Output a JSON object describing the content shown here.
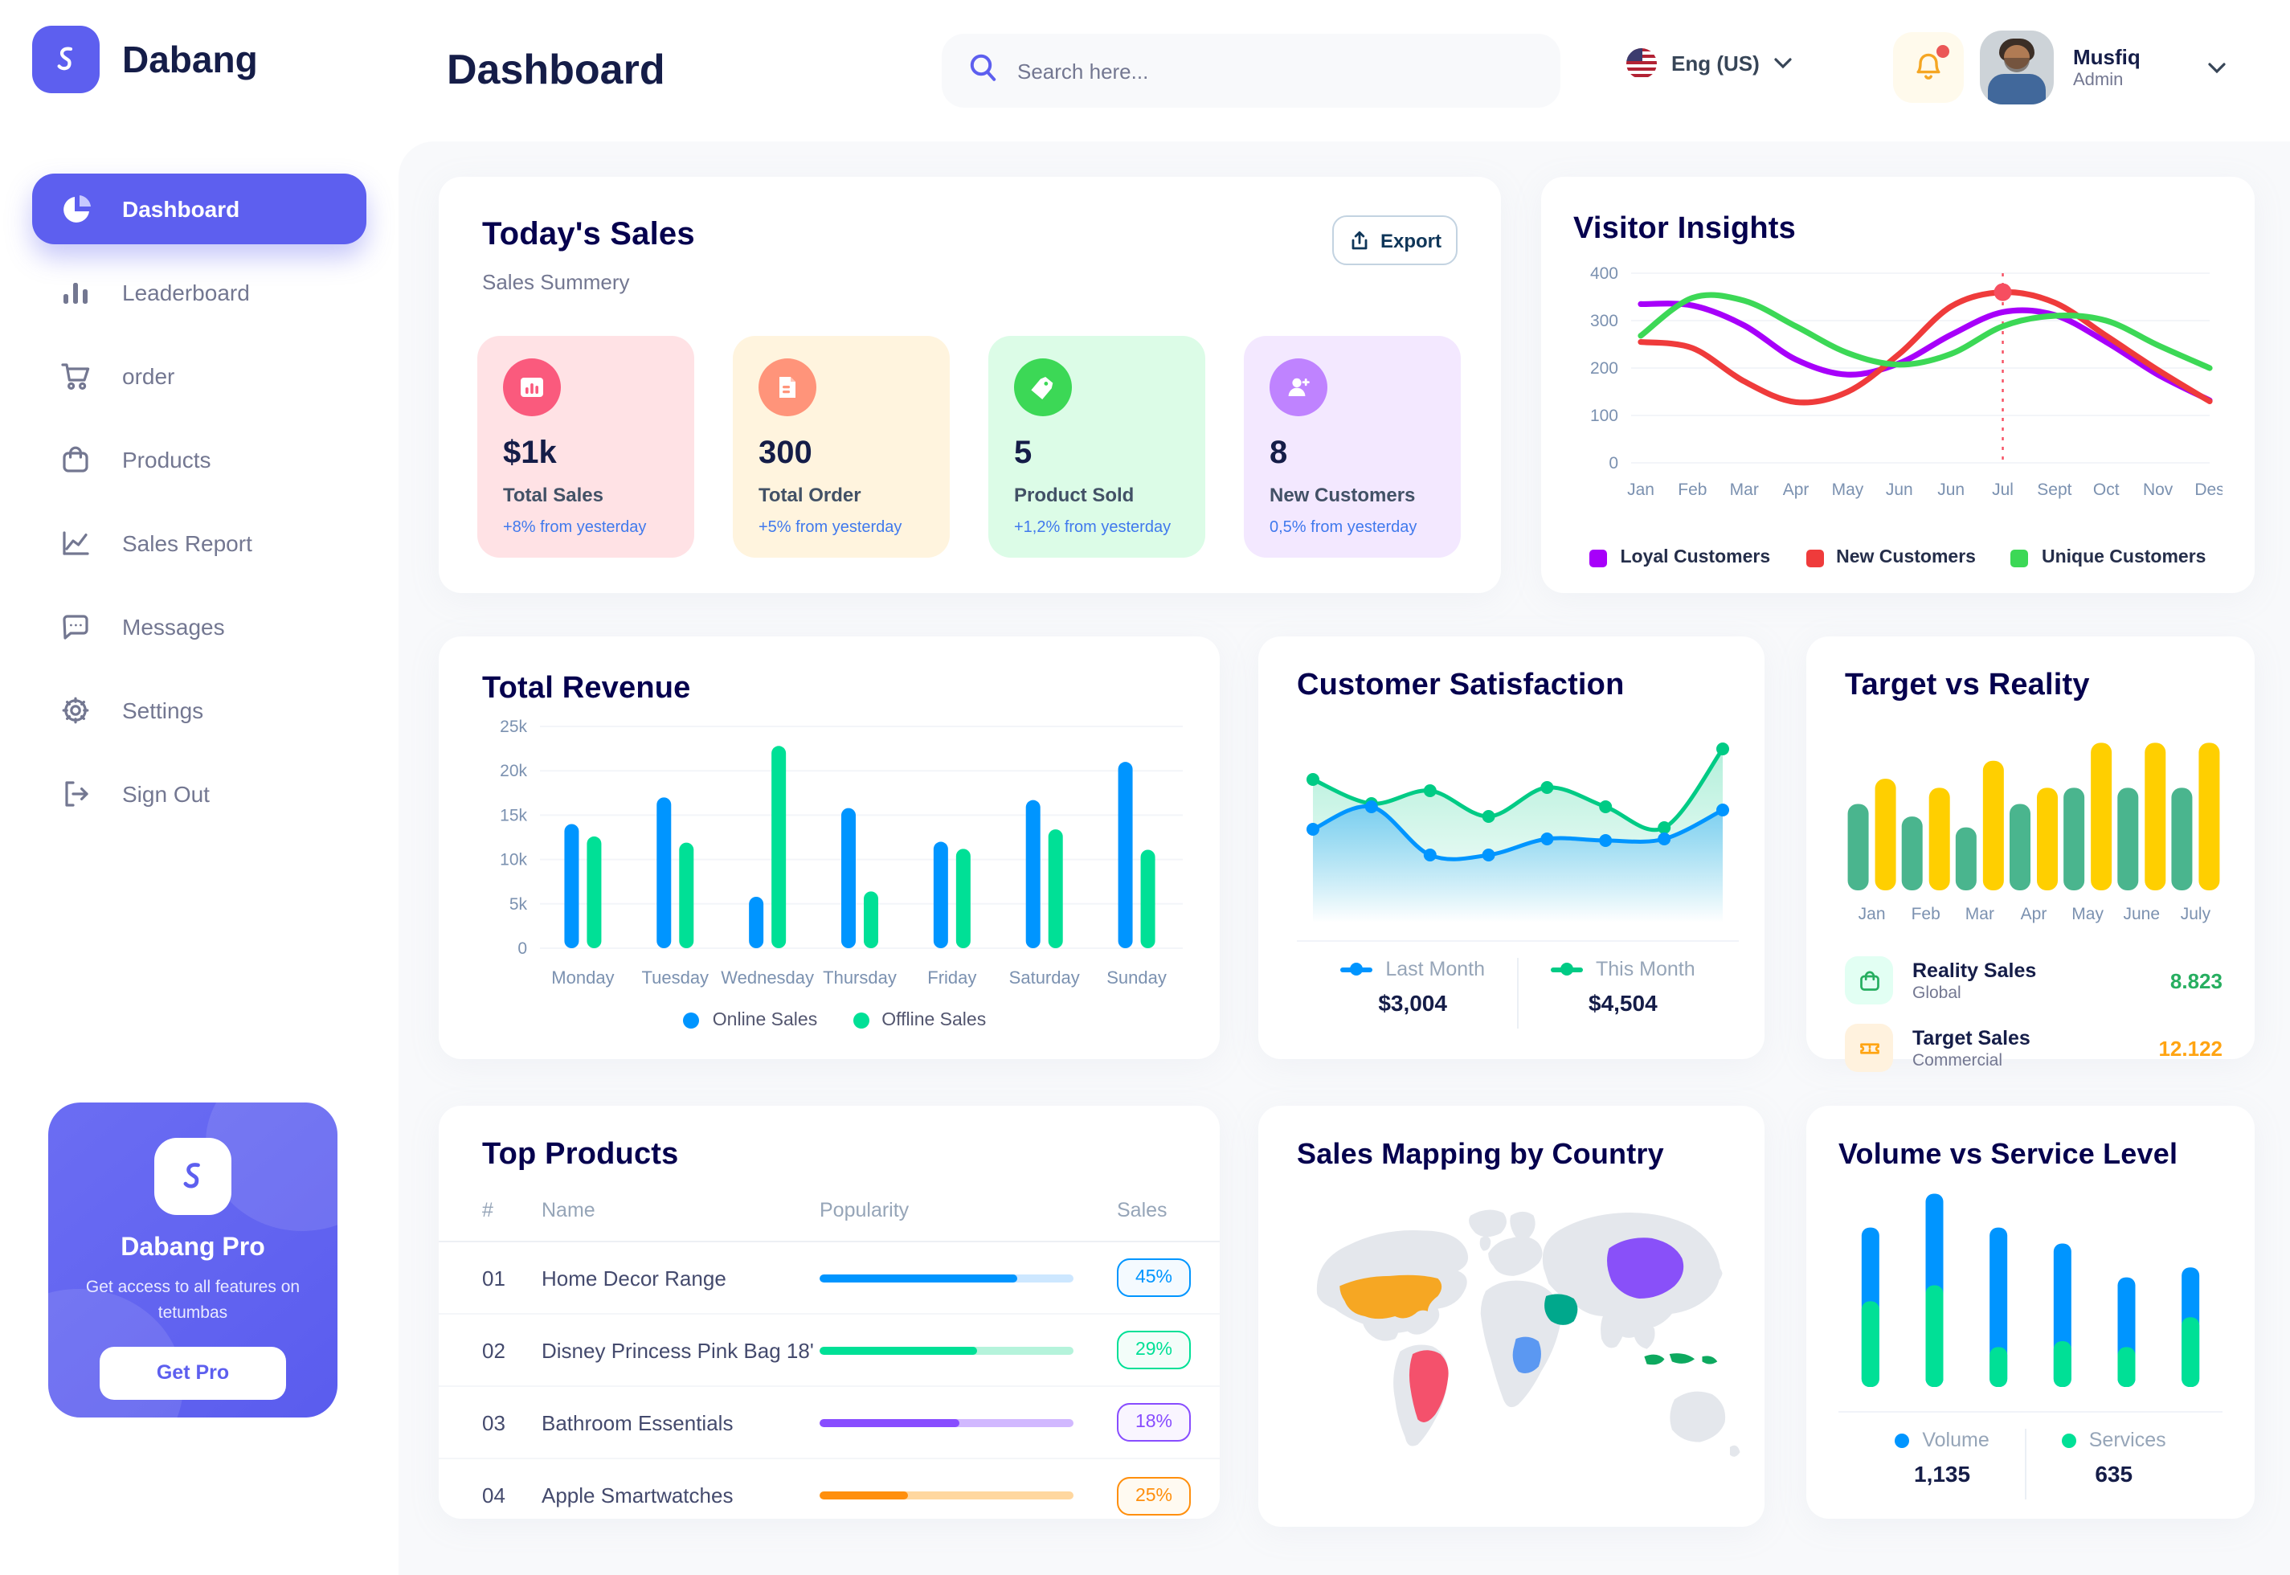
{
  "app": {
    "brand": "Dabang"
  },
  "header": {
    "title": "Dashboard",
    "search": {
      "placeholder": "Search here..."
    },
    "language": {
      "label": "Eng (US)"
    },
    "user": {
      "name": "Musfiq",
      "role": "Admin"
    }
  },
  "sidebar": {
    "items": [
      {
        "label": "Dashboard",
        "icon": "pie-chart-icon",
        "active": true
      },
      {
        "label": "Leaderboard",
        "icon": "bar-chart-icon",
        "active": false
      },
      {
        "label": "order",
        "icon": "cart-icon",
        "active": false
      },
      {
        "label": "Products",
        "icon": "bag-icon",
        "active": false
      },
      {
        "label": "Sales Report",
        "icon": "line-chart-icon",
        "active": false
      },
      {
        "label": "Messages",
        "icon": "message-icon",
        "active": false
      },
      {
        "label": "Settings",
        "icon": "gear-icon",
        "active": false
      },
      {
        "label": "Sign Out",
        "icon": "sign-out-icon",
        "active": false
      }
    ],
    "pro_card": {
      "title": "Dabang Pro",
      "subtitle": "Get access to all features on tetumbas",
      "cta": "Get Pro"
    }
  },
  "todays_sales": {
    "title": "Today's Sales",
    "subtitle": "Sales Summery",
    "export_label": "Export",
    "stats": [
      {
        "value": "$1k",
        "label": "Total Sales",
        "delta": "+8% from yesterday",
        "card_bg": "#FFE2E5",
        "icon_bg": "#FA5A7D",
        "icon": "chart-card-icon"
      },
      {
        "value": "300",
        "label": "Total Order",
        "delta": "+5% from yesterday",
        "card_bg": "#FFF4DE",
        "icon_bg": "#FF947A",
        "icon": "document-icon"
      },
      {
        "value": "5",
        "label": "Product Sold",
        "delta": "+1,2% from yesterday",
        "card_bg": "#DCFCE7",
        "icon_bg": "#3CD856",
        "icon": "tag-icon"
      },
      {
        "value": "8",
        "label": "New Customers",
        "delta": "0,5% from yesterday",
        "card_bg": "#F3E8FF",
        "icon_bg": "#BF83FF",
        "icon": "new-user-icon"
      }
    ]
  },
  "chart_data": {
    "visitor_insights": {
      "type": "line",
      "title": "Visitor Insights",
      "x_labels": [
        "Jan",
        "Feb",
        "Mar",
        "Apr",
        "May",
        "Jun",
        "Jun",
        "Jul",
        "Sept",
        "Oct",
        "Nov",
        "Des"
      ],
      "y_tick_values": [
        0,
        100,
        200,
        300,
        400
      ],
      "ylim": [
        0,
        400
      ],
      "grid": true,
      "legend_position": "bottom",
      "series": [
        {
          "name": "Loyal Customers",
          "color": "#A700FA",
          "values": [
            335,
            332,
            290,
            218,
            186,
            210,
            270,
            318,
            312,
            255,
            186,
            132
          ]
        },
        {
          "name": "New Customers",
          "color": "#EF3B3B",
          "values": [
            255,
            242,
            172,
            128,
            150,
            230,
            330,
            360,
            338,
            268,
            196,
            130
          ]
        },
        {
          "name": "Unique Customers",
          "color": "#3CD856",
          "values": [
            268,
            348,
            342,
            288,
            232,
            207,
            230,
            288,
            310,
            300,
            248,
            200
          ]
        }
      ],
      "marker": {
        "series_index": 1,
        "x_index": 7,
        "color": "#F64E60"
      }
    },
    "total_revenue": {
      "type": "bar",
      "title": "Total Revenue",
      "categories": [
        "Monday",
        "Tuesday",
        "Wednesday",
        "Thursday",
        "Friday",
        "Saturday",
        "Sunday"
      ],
      "y_tick_values": [
        0,
        5,
        10,
        15,
        20,
        25
      ],
      "y_tick_labels": [
        "0",
        "5k",
        "10k",
        "15k",
        "20k",
        "25k"
      ],
      "ylim": [
        0,
        25
      ],
      "grid": true,
      "legend_position": "bottom",
      "series": [
        {
          "name": "Online Sales",
          "color": "#0095FF",
          "values": [
            14,
            17,
            5.8,
            15.8,
            12,
            16.7,
            21
          ]
        },
        {
          "name": "Offline Sales",
          "color": "#00E096",
          "values": [
            12.6,
            11.9,
            22.8,
            6.4,
            11.2,
            13.4,
            11.1
          ]
        }
      ]
    },
    "customer_satisfaction": {
      "type": "area",
      "title": "Customer Satisfaction",
      "ylim": [
        0,
        100
      ],
      "legend_position": "bottom",
      "series": [
        {
          "name": "Last Month",
          "color": "#0095FF",
          "total": "$3,004",
          "values": [
            42,
            56,
            26,
            26,
            36,
            35,
            36,
            54
          ]
        },
        {
          "name": "This Month",
          "color": "#00CB85",
          "total": "$4,504",
          "values": [
            73,
            58,
            66,
            50,
            68,
            56,
            43,
            92
          ]
        }
      ]
    },
    "target_vs_reality": {
      "type": "bar",
      "title": "Target vs Reality",
      "categories": [
        "Jan",
        "Feb",
        "Mar",
        "Apr",
        "May",
        "June",
        "July"
      ],
      "ylim": [
        0,
        100
      ],
      "series": [
        {
          "name": "Reality Sales",
          "color": "#4AB58E",
          "values": [
            48,
            41,
            35,
            48,
            57,
            57,
            57
          ]
        },
        {
          "name": "Target Sales",
          "color": "#FFCF00",
          "values": [
            62,
            57,
            72,
            57,
            82,
            82,
            82
          ]
        }
      ],
      "summary": [
        {
          "label": "Reality Sales",
          "sublabel": "Global",
          "value": "8.823",
          "value_color": "#27AE60",
          "icon": "bag-icon",
          "icon_bg": "#E2FFF3"
        },
        {
          "label": "Target Sales",
          "sublabel": "Commercial",
          "value": "12.122",
          "value_color": "#FFA412",
          "icon": "ticket-icon",
          "icon_bg": "#FFF2DE"
        }
      ]
    },
    "volume_service": {
      "type": "stacked-bar",
      "title": "Volume vs Service Level",
      "legend_position": "bottom",
      "series": [
        {
          "name": "Volume",
          "color": "#0095FF",
          "total": "1,135",
          "values": [
            37,
            46,
            60,
            49,
            35,
            25
          ]
        },
        {
          "name": "Services",
          "color": "#00E096",
          "total": "635",
          "values": [
            43,
            51,
            20,
            23,
            20,
            35
          ]
        }
      ]
    }
  },
  "top_products": {
    "title": "Top Products",
    "columns": [
      "#",
      "Name",
      "Popularity",
      "Sales"
    ],
    "rows": [
      {
        "num": "01",
        "name": "Home Decor Range",
        "popularity": 78,
        "sales": "45%",
        "color": "#0095FF",
        "track": "#CDE7FF",
        "badge_bg": "#F4FAFF"
      },
      {
        "num": "02",
        "name": "Disney Princess Pink Bag 18'",
        "popularity": 62,
        "sales": "29%",
        "color": "#00E096",
        "track": "#B5F3DB",
        "badge_bg": "#F3FDF9"
      },
      {
        "num": "03",
        "name": "Bathroom Essentials",
        "popularity": 55,
        "sales": "18%",
        "color": "#884DFF",
        "track": "#D1B8FF",
        "badge_bg": "#F9F5FF"
      },
      {
        "num": "04",
        "name": "Apple Smartwatches",
        "popularity": 35,
        "sales": "25%",
        "color": "#FF8F0D",
        "track": "#FFD79F",
        "badge_bg": "#FFFAF1"
      }
    ]
  },
  "sales_mapping": {
    "title": "Sales Mapping by Country",
    "countries": [
      {
        "name": "United States",
        "color": "#F6A723"
      },
      {
        "name": "Brazil",
        "color": "#F4516C"
      },
      {
        "name": "Saudi Arabia",
        "color": "#00A88C"
      },
      {
        "name": "DR Congo",
        "color": "#5B98F2"
      },
      {
        "name": "China",
        "color": "#8950F9"
      },
      {
        "name": "Indonesia",
        "color": "#0DA95F"
      }
    ]
  }
}
